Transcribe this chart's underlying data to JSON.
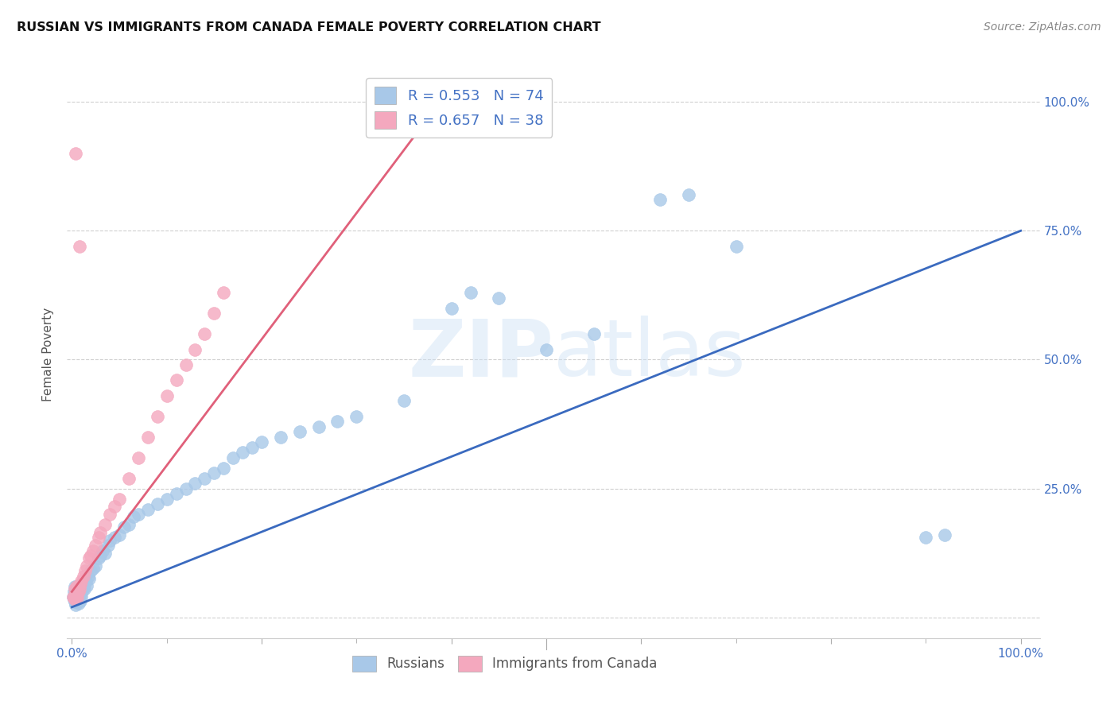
{
  "title": "RUSSIAN VS IMMIGRANTS FROM CANADA FEMALE POVERTY CORRELATION CHART",
  "source": "Source: ZipAtlas.com",
  "ylabel": "Female Poverty",
  "xlim": [
    -0.005,
    1.02
  ],
  "ylim": [
    -0.04,
    1.06
  ],
  "x_ticks": [
    0.0,
    0.2,
    0.4,
    0.6,
    0.8,
    1.0
  ],
  "y_ticks": [
    0.0,
    0.25,
    0.5,
    0.75,
    1.0
  ],
  "russian_R": 0.553,
  "russian_N": 74,
  "canada_R": 0.657,
  "canada_N": 38,
  "russian_color": "#a8c8e8",
  "canada_color": "#f4a8be",
  "trend_russian_color": "#3a6abf",
  "trend_canada_color": "#e0607a",
  "legend_label_russian": "Russians",
  "legend_label_canada": "Immigrants from Canada",
  "rus_trend_x0": 0.0,
  "rus_trend_y0": 0.02,
  "rus_trend_x1": 1.0,
  "rus_trend_y1": 0.75,
  "can_trend_x0": 0.0,
  "can_trend_y0": 0.05,
  "can_trend_x1": 0.38,
  "can_trend_y1": 0.98,
  "russian_x": [
    0.001,
    0.002,
    0.002,
    0.003,
    0.003,
    0.003,
    0.004,
    0.004,
    0.004,
    0.005,
    0.005,
    0.005,
    0.006,
    0.006,
    0.007,
    0.007,
    0.008,
    0.008,
    0.009,
    0.009,
    0.01,
    0.01,
    0.011,
    0.012,
    0.013,
    0.014,
    0.015,
    0.016,
    0.017,
    0.018,
    0.02,
    0.022,
    0.025,
    0.028,
    0.03,
    0.032,
    0.035,
    0.038,
    0.04,
    0.045,
    0.05,
    0.055,
    0.06,
    0.065,
    0.07,
    0.08,
    0.09,
    0.1,
    0.11,
    0.12,
    0.13,
    0.14,
    0.15,
    0.16,
    0.17,
    0.18,
    0.19,
    0.2,
    0.22,
    0.24,
    0.26,
    0.28,
    0.3,
    0.35,
    0.4,
    0.42,
    0.45,
    0.5,
    0.55,
    0.62,
    0.65,
    0.7,
    0.9,
    0.92
  ],
  "russian_y": [
    0.04,
    0.035,
    0.05,
    0.03,
    0.045,
    0.06,
    0.025,
    0.038,
    0.055,
    0.03,
    0.042,
    0.06,
    0.035,
    0.05,
    0.028,
    0.055,
    0.038,
    0.06,
    0.032,
    0.058,
    0.04,
    0.065,
    0.05,
    0.06,
    0.055,
    0.068,
    0.07,
    0.062,
    0.08,
    0.075,
    0.09,
    0.095,
    0.1,
    0.115,
    0.12,
    0.13,
    0.125,
    0.14,
    0.15,
    0.155,
    0.16,
    0.175,
    0.18,
    0.195,
    0.2,
    0.21,
    0.22,
    0.23,
    0.24,
    0.25,
    0.26,
    0.27,
    0.28,
    0.29,
    0.31,
    0.32,
    0.33,
    0.34,
    0.35,
    0.36,
    0.37,
    0.38,
    0.39,
    0.42,
    0.6,
    0.63,
    0.62,
    0.52,
    0.55,
    0.81,
    0.82,
    0.72,
    0.155,
    0.16
  ],
  "canada_x": [
    0.001,
    0.002,
    0.003,
    0.003,
    0.004,
    0.005,
    0.005,
    0.006,
    0.007,
    0.008,
    0.009,
    0.01,
    0.012,
    0.014,
    0.016,
    0.018,
    0.02,
    0.022,
    0.025,
    0.028,
    0.03,
    0.035,
    0.04,
    0.045,
    0.05,
    0.06,
    0.07,
    0.08,
    0.09,
    0.1,
    0.11,
    0.12,
    0.13,
    0.14,
    0.15,
    0.16,
    0.004,
    0.008
  ],
  "canada_y": [
    0.04,
    0.038,
    0.035,
    0.055,
    0.04,
    0.042,
    0.06,
    0.038,
    0.05,
    0.055,
    0.065,
    0.07,
    0.08,
    0.09,
    0.1,
    0.115,
    0.12,
    0.13,
    0.14,
    0.155,
    0.165,
    0.18,
    0.2,
    0.215,
    0.23,
    0.27,
    0.31,
    0.35,
    0.39,
    0.43,
    0.46,
    0.49,
    0.52,
    0.55,
    0.59,
    0.63,
    0.9,
    0.72
  ]
}
